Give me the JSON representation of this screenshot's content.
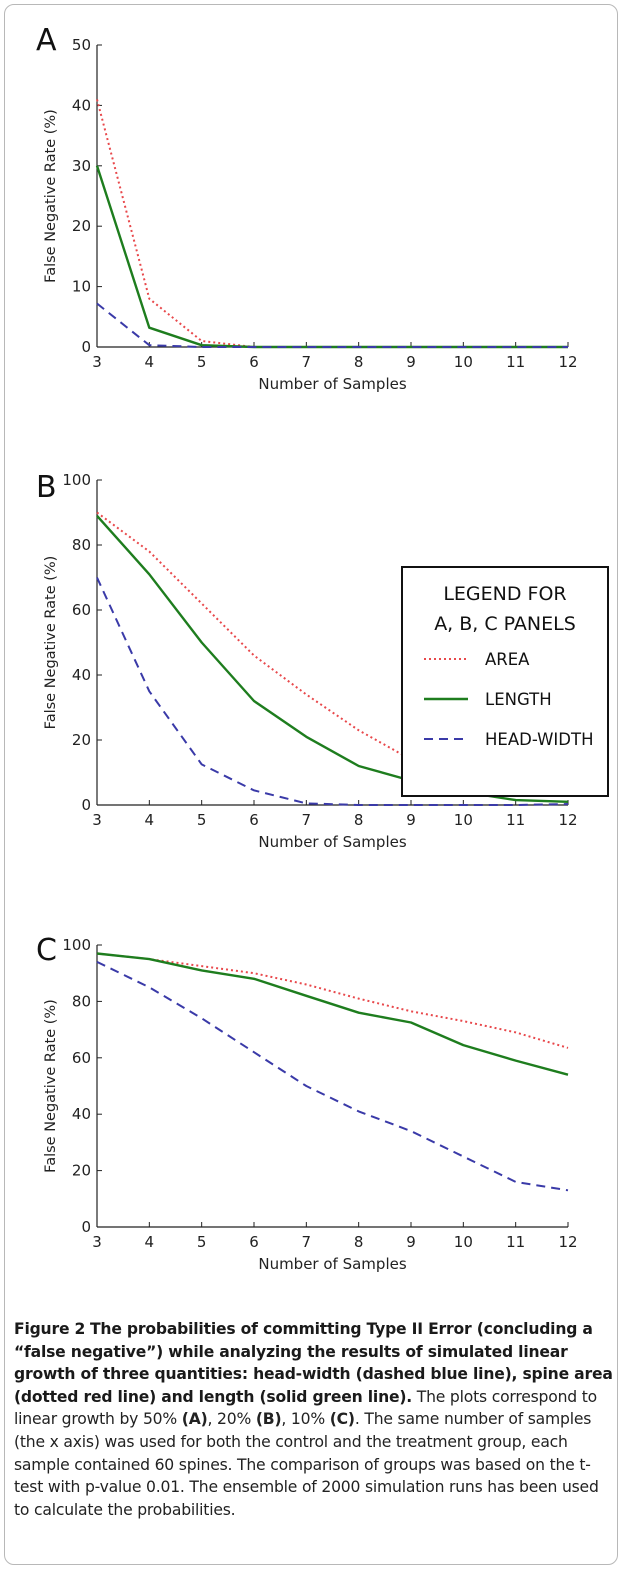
{
  "chart_data": [
    {
      "type": "line",
      "panel_label": "A",
      "x": [
        3,
        4,
        5,
        6,
        7,
        8,
        9,
        10,
        11,
        12
      ],
      "xlim": [
        3,
        12
      ],
      "ylim": [
        0,
        50
      ],
      "yticks": [
        0,
        10,
        20,
        30,
        40,
        50
      ],
      "xlabel": "Number of Samples",
      "ylabel": "False Negative Rate (%)",
      "series": [
        {
          "key": "area",
          "color": "#e8484b",
          "dash": "2,3",
          "values": [
            41,
            8,
            1,
            0,
            0,
            0,
            0,
            0,
            0,
            0
          ]
        },
        {
          "key": "length",
          "color": "#1e7d1e",
          "dash": "",
          "values": [
            30,
            3.2,
            0.3,
            0,
            0,
            0,
            0,
            0,
            0,
            0
          ]
        },
        {
          "key": "headwidth",
          "color": "#3a3aa8",
          "dash": "9,6",
          "values": [
            7.2,
            0.3,
            0,
            0,
            0,
            0,
            0,
            0,
            0,
            0
          ]
        }
      ]
    },
    {
      "type": "line",
      "panel_label": "B",
      "x": [
        3,
        4,
        5,
        6,
        7,
        8,
        9,
        10,
        11,
        12
      ],
      "xlim": [
        3,
        12
      ],
      "ylim": [
        0,
        100
      ],
      "yticks": [
        0,
        20,
        40,
        60,
        80,
        100
      ],
      "xlabel": "Number of Samples",
      "ylabel": "False Negative Rate (%)",
      "series": [
        {
          "key": "area",
          "color": "#e8484b",
          "dash": "2,3",
          "values": [
            90,
            78,
            62,
            46,
            34,
            23,
            14,
            8,
            5.5,
            3
          ]
        },
        {
          "key": "length",
          "color": "#1e7d1e",
          "dash": "",
          "values": [
            89,
            71,
            50,
            32,
            21,
            12,
            7.5,
            4,
            1.5,
            1
          ]
        },
        {
          "key": "headwidth",
          "color": "#3a3aa8",
          "dash": "9,6",
          "values": [
            70,
            35,
            12.5,
            4.5,
            0.5,
            0,
            0,
            0,
            0,
            0.3
          ]
        }
      ],
      "legend": {
        "title_line1": "LEGEND FOR",
        "title_line2": "A, B, C PANELS",
        "items": [
          "AREA",
          "LENGTH",
          "HEAD-WIDTH"
        ],
        "placement": "top-right"
      }
    },
    {
      "type": "line",
      "panel_label": "C",
      "x": [
        3,
        4,
        5,
        6,
        7,
        8,
        9,
        10,
        11,
        12
      ],
      "xlim": [
        3,
        12
      ],
      "ylim": [
        0,
        100
      ],
      "yticks": [
        0,
        20,
        40,
        60,
        80,
        100
      ],
      "xlabel": "Number of Samples",
      "ylabel": "False Negative Rate (%)",
      "series": [
        {
          "key": "area",
          "color": "#e8484b",
          "dash": "2,3",
          "values": [
            97,
            95,
            92.5,
            90,
            86,
            81,
            76.5,
            73,
            69,
            63.5
          ]
        },
        {
          "key": "length",
          "color": "#1e7d1e",
          "dash": "",
          "values": [
            97,
            95,
            91,
            88,
            82,
            76,
            72.5,
            64.5,
            59,
            54
          ]
        },
        {
          "key": "headwidth",
          "color": "#3a3aa8",
          "dash": "9,6",
          "values": [
            94,
            85,
            74,
            62,
            50,
            41,
            34,
            25,
            16,
            13
          ]
        }
      ]
    }
  ],
  "caption": {
    "figure_label": "Figure 2",
    "bold_text": "The probabilities of committing Type II Error (concluding a “false negative”) while analyzing the results of simulated linear growth of three quantities: head-width (dashed blue line), spine area (dotted red line) and length (solid green line).",
    "body_1": " The plots correspond to linear growth by 50% ",
    "ref_a": "(A)",
    "body_2": ", 20% ",
    "ref_b": "(B)",
    "body_3": ", 10% ",
    "ref_c": "(C)",
    "body_4": ". The same number of samples (the x axis) was used for both the control and the treatment group, each sample contained 60 spines. The comparison of groups was based on the t-test with p-value 0.01. The ensemble of 2000 simulation runs has been used to calculate the probabilities."
  }
}
